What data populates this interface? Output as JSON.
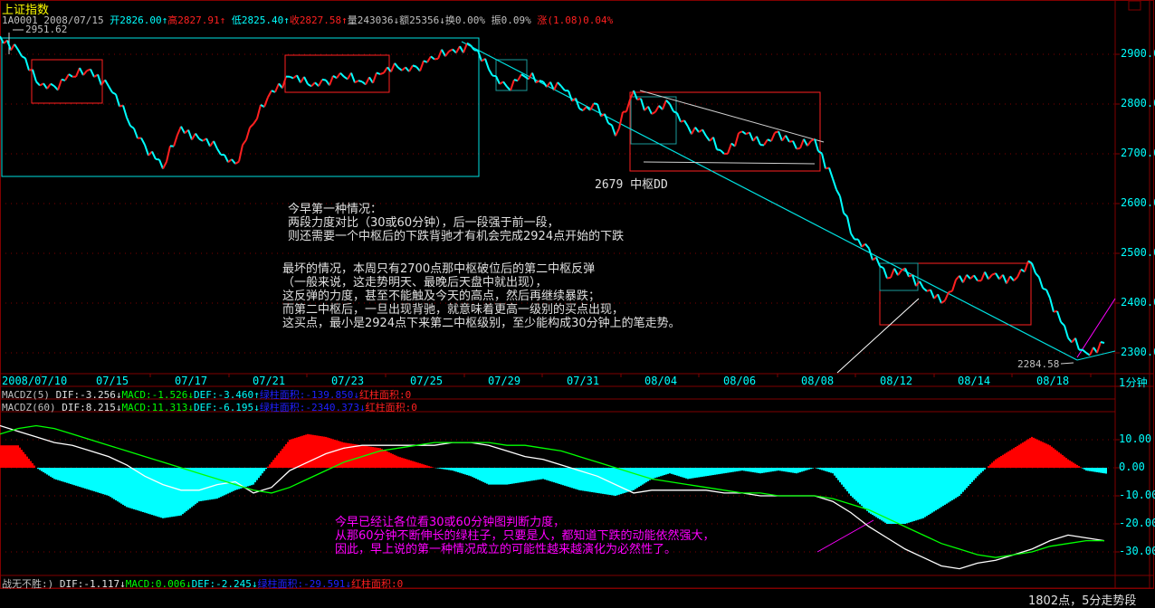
{
  "header": {
    "title": "上证指数",
    "code": "1A0001",
    "date": "2008/07/15",
    "open_label": "开",
    "open": "2826.00",
    "high_label": "高",
    "high": "2827.91",
    "low_label": "低",
    "low": "2825.40",
    "close_label": "收",
    "close": "2827.58",
    "volume_label": "量",
    "volume": "243036",
    "amount_label": "额",
    "amount": "25356",
    "turnover_label": "换",
    "turnover": "0.00%",
    "amplitude_label": "振",
    "amplitude": "0.09%",
    "change_label": "涨",
    "change": "(1.08)0.04%"
  },
  "indicators": {
    "macd5": {
      "name": "MACDZ(5)",
      "dif": "DIF:-3.256",
      "macd": "MACD:-1.526",
      "def": "DEF:-3.460",
      "green_area": "绿柱面积:-139.850",
      "red_area": "红柱面积:0"
    },
    "macd60": {
      "name": "MACDZ(60)",
      "dif": "DIF:8.215",
      "macd": "MACD:11.313",
      "def": "DEF:-6.195",
      "green_area": "绿柱面积:-2340.373",
      "red_area": "红柱面积:0"
    },
    "bottom": {
      "name": "战无不胜:)",
      "dif": "DIF:-1.117",
      "macd": "MACD:0.006",
      "def": "DEF:-2.245",
      "green_area": "绿柱面积:-29.591",
      "red_area": "红柱面积:0"
    }
  },
  "annotations": {
    "high_mark": "2951.62",
    "low_mark": "2284.58",
    "pivot_label": "2679 中枢DD",
    "note1": [
      "今早第一种情况：",
      "两段力度对比（30或60分钟），后一段强于前一段，",
      "则还需要一个中枢后的下跌背驰才有机会完成2924点开始的下跌"
    ],
    "note2": [
      "最坏的情况，本周只有2700点那中枢破位后的第二中枢反弹",
      "（一般来说，这走势明天、最晚后天盘中就出现），",
      "这反弹的力度，甚至不能触及今天的高点，然后再继续暴跌；",
      "而第二中枢后，一旦出现背驰，就意味着更高一级别的买点出现，",
      "这买点，最小是2924点下来第二中枢级别，至少能构成30分钟上的笔走势。"
    ],
    "note3": [
      "今早已经让各位看30或60分钟图判断力度，",
      "从那60分钟不断伸长的绿柱子，只要是人，都知道下跌的动能依然强大，",
      "因此，早上说的第一种情况成立的可能性越来越演化为必然性了。"
    ]
  },
  "period_label": "1分钟",
  "status": "1802点，5分走势段",
  "colors": {
    "up": "#ff2020",
    "down": "#00ffff",
    "grid": "#800000",
    "dif": "#ffffff",
    "dea": "#00ff00",
    "hist_pos": "#ff0000",
    "hist_neg": "#00ffff",
    "note1": "#ffffff",
    "note3": "#ff00ff"
  },
  "chart_data": [
    {
      "type": "line",
      "title": "上证指数",
      "x_tick_labels": [
        "2008/07/10",
        "07/15",
        "07/17",
        "07/21",
        "07/23",
        "07/25",
        "07/29",
        "07/31",
        "08/04",
        "08/06",
        "08/08",
        "08/12",
        "08/14",
        "08/18"
      ],
      "y_tick_labels": [
        "2900.0",
        "2800.0",
        "2700.0",
        "2600.0",
        "2500.0",
        "2400.0",
        "2300.0"
      ],
      "ylim": [
        2250,
        2960
      ],
      "grid": true,
      "series": [
        {
          "values": [
            2936,
            2909,
            2845,
            2836,
            2855,
            2870,
            2836,
            2773,
            2718,
            2670,
            2755,
            2730,
            2710,
            2680,
            2760,
            2827,
            2855,
            2840,
            2848,
            2855,
            2845,
            2860,
            2873,
            2875,
            2890,
            2910,
            2918,
            2870,
            2835,
            2855,
            2845,
            2836,
            2791,
            2800,
            2736,
            2827,
            2780,
            2800,
            2755,
            2736,
            2700,
            2745,
            2718,
            2745,
            2710,
            2730,
            2650,
            2540,
            2510,
            2450,
            2470,
            2430,
            2400,
            2455,
            2445,
            2460,
            2445,
            2480,
            2410,
            2330,
            2300,
            2320
          ]
        }
      ]
    },
    {
      "type": "bar",
      "title": "MACDZ(60)",
      "y_tick_labels": [
        "10.00",
        "0.00",
        "-10.00",
        "-20.00",
        "-30.00"
      ],
      "ylim": [
        -37,
        20
      ],
      "grid": true,
      "histogram": [
        8,
        8,
        0,
        -4,
        -6,
        -8,
        -10,
        -14,
        -16,
        -18,
        -17,
        -12,
        -11,
        -8,
        -6,
        2,
        10,
        12,
        11,
        9,
        8,
        7,
        4,
        2,
        0,
        -1,
        -3,
        -6,
        -6,
        -5,
        -4,
        -6,
        -8,
        -9,
        -10,
        -8,
        -4,
        -2,
        -4,
        -3,
        -2,
        -1,
        -2,
        -1,
        -2,
        0,
        -2,
        -10,
        -16,
        -20,
        -20,
        -18,
        -14,
        -10,
        -3,
        3,
        7,
        11,
        8,
        3,
        -1,
        -2
      ],
      "series": [
        {
          "values": [
            15,
            13,
            11,
            9,
            8,
            6,
            4,
            1,
            -3,
            -6,
            -8,
            -8,
            -6,
            -5,
            -9,
            -7,
            -1,
            2,
            5,
            7,
            8,
            8,
            8,
            8,
            8,
            9,
            9,
            8,
            6,
            4,
            3,
            1,
            -1,
            -3,
            -6,
            -9,
            -8,
            -8,
            -8,
            -8,
            -9,
            -9,
            -10,
            -10,
            -10,
            -10,
            -12,
            -16,
            -21,
            -25,
            -29,
            -32,
            -35,
            -36,
            -34,
            -33,
            -31,
            -29,
            -26,
            -24,
            -25,
            -26
          ]
        },
        {
          "values": [
            12,
            14,
            15,
            14,
            12,
            10,
            8,
            6,
            4,
            2,
            0,
            -2,
            -4,
            -6,
            -8,
            -9,
            -7,
            -4,
            -1,
            2,
            4,
            6,
            7,
            8,
            9,
            9,
            9,
            9,
            8,
            8,
            7,
            6,
            4,
            2,
            0,
            -2,
            -4,
            -5,
            -6,
            -7,
            -8,
            -9,
            -9,
            -10,
            -10,
            -10,
            -11,
            -13,
            -15,
            -18,
            -21,
            -24,
            -27,
            -29,
            -31,
            -32,
            -31,
            -30,
            -28,
            -27,
            -26,
            -26
          ]
        }
      ]
    }
  ]
}
